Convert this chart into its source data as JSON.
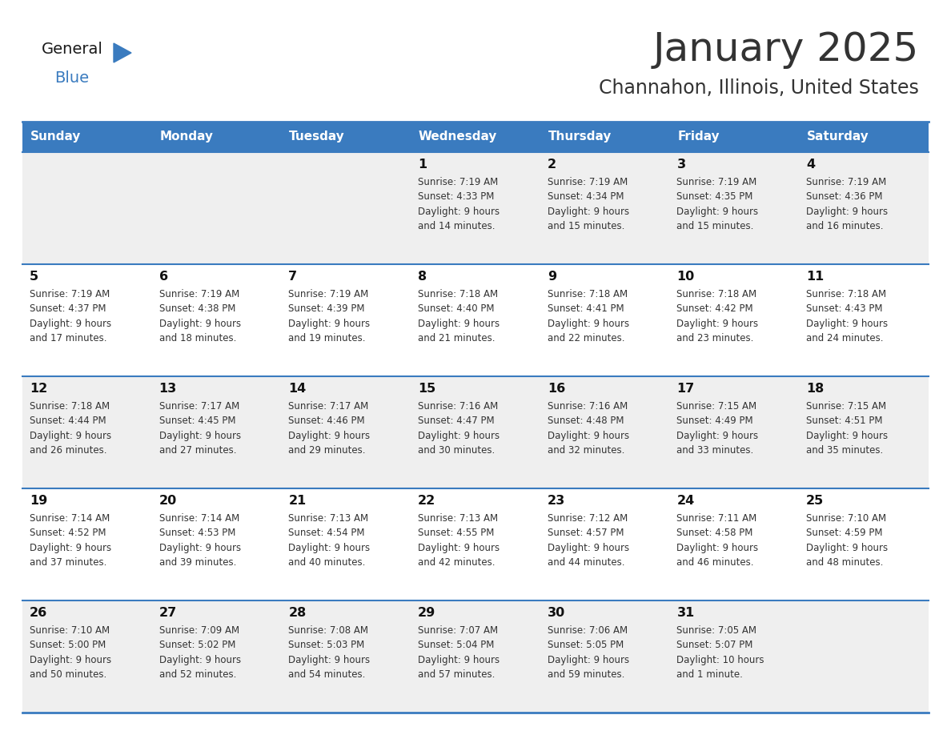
{
  "title": "January 2025",
  "subtitle": "Channahon, Illinois, United States",
  "header_bg_color": "#3a7bbf",
  "header_text_color": "#ffffff",
  "day_names": [
    "Sunday",
    "Monday",
    "Tuesday",
    "Wednesday",
    "Thursday",
    "Friday",
    "Saturday"
  ],
  "odd_row_bg": "#efefef",
  "even_row_bg": "#ffffff",
  "cell_border_color": "#3a7bbf",
  "text_color": "#333333",
  "day_num_color": "#111111",
  "logo_black_color": "#1a1a1a",
  "logo_blue_color": "#3a7bbf",
  "calendar": [
    [
      {
        "day": null,
        "info": null
      },
      {
        "day": null,
        "info": null
      },
      {
        "day": null,
        "info": null
      },
      {
        "day": 1,
        "info": "Sunrise: 7:19 AM\nSunset: 4:33 PM\nDaylight: 9 hours\nand 14 minutes."
      },
      {
        "day": 2,
        "info": "Sunrise: 7:19 AM\nSunset: 4:34 PM\nDaylight: 9 hours\nand 15 minutes."
      },
      {
        "day": 3,
        "info": "Sunrise: 7:19 AM\nSunset: 4:35 PM\nDaylight: 9 hours\nand 15 minutes."
      },
      {
        "day": 4,
        "info": "Sunrise: 7:19 AM\nSunset: 4:36 PM\nDaylight: 9 hours\nand 16 minutes."
      }
    ],
    [
      {
        "day": 5,
        "info": "Sunrise: 7:19 AM\nSunset: 4:37 PM\nDaylight: 9 hours\nand 17 minutes."
      },
      {
        "day": 6,
        "info": "Sunrise: 7:19 AM\nSunset: 4:38 PM\nDaylight: 9 hours\nand 18 minutes."
      },
      {
        "day": 7,
        "info": "Sunrise: 7:19 AM\nSunset: 4:39 PM\nDaylight: 9 hours\nand 19 minutes."
      },
      {
        "day": 8,
        "info": "Sunrise: 7:18 AM\nSunset: 4:40 PM\nDaylight: 9 hours\nand 21 minutes."
      },
      {
        "day": 9,
        "info": "Sunrise: 7:18 AM\nSunset: 4:41 PM\nDaylight: 9 hours\nand 22 minutes."
      },
      {
        "day": 10,
        "info": "Sunrise: 7:18 AM\nSunset: 4:42 PM\nDaylight: 9 hours\nand 23 minutes."
      },
      {
        "day": 11,
        "info": "Sunrise: 7:18 AM\nSunset: 4:43 PM\nDaylight: 9 hours\nand 24 minutes."
      }
    ],
    [
      {
        "day": 12,
        "info": "Sunrise: 7:18 AM\nSunset: 4:44 PM\nDaylight: 9 hours\nand 26 minutes."
      },
      {
        "day": 13,
        "info": "Sunrise: 7:17 AM\nSunset: 4:45 PM\nDaylight: 9 hours\nand 27 minutes."
      },
      {
        "day": 14,
        "info": "Sunrise: 7:17 AM\nSunset: 4:46 PM\nDaylight: 9 hours\nand 29 minutes."
      },
      {
        "day": 15,
        "info": "Sunrise: 7:16 AM\nSunset: 4:47 PM\nDaylight: 9 hours\nand 30 minutes."
      },
      {
        "day": 16,
        "info": "Sunrise: 7:16 AM\nSunset: 4:48 PM\nDaylight: 9 hours\nand 32 minutes."
      },
      {
        "day": 17,
        "info": "Sunrise: 7:15 AM\nSunset: 4:49 PM\nDaylight: 9 hours\nand 33 minutes."
      },
      {
        "day": 18,
        "info": "Sunrise: 7:15 AM\nSunset: 4:51 PM\nDaylight: 9 hours\nand 35 minutes."
      }
    ],
    [
      {
        "day": 19,
        "info": "Sunrise: 7:14 AM\nSunset: 4:52 PM\nDaylight: 9 hours\nand 37 minutes."
      },
      {
        "day": 20,
        "info": "Sunrise: 7:14 AM\nSunset: 4:53 PM\nDaylight: 9 hours\nand 39 minutes."
      },
      {
        "day": 21,
        "info": "Sunrise: 7:13 AM\nSunset: 4:54 PM\nDaylight: 9 hours\nand 40 minutes."
      },
      {
        "day": 22,
        "info": "Sunrise: 7:13 AM\nSunset: 4:55 PM\nDaylight: 9 hours\nand 42 minutes."
      },
      {
        "day": 23,
        "info": "Sunrise: 7:12 AM\nSunset: 4:57 PM\nDaylight: 9 hours\nand 44 minutes."
      },
      {
        "day": 24,
        "info": "Sunrise: 7:11 AM\nSunset: 4:58 PM\nDaylight: 9 hours\nand 46 minutes."
      },
      {
        "day": 25,
        "info": "Sunrise: 7:10 AM\nSunset: 4:59 PM\nDaylight: 9 hours\nand 48 minutes."
      }
    ],
    [
      {
        "day": 26,
        "info": "Sunrise: 7:10 AM\nSunset: 5:00 PM\nDaylight: 9 hours\nand 50 minutes."
      },
      {
        "day": 27,
        "info": "Sunrise: 7:09 AM\nSunset: 5:02 PM\nDaylight: 9 hours\nand 52 minutes."
      },
      {
        "day": 28,
        "info": "Sunrise: 7:08 AM\nSunset: 5:03 PM\nDaylight: 9 hours\nand 54 minutes."
      },
      {
        "day": 29,
        "info": "Sunrise: 7:07 AM\nSunset: 5:04 PM\nDaylight: 9 hours\nand 57 minutes."
      },
      {
        "day": 30,
        "info": "Sunrise: 7:06 AM\nSunset: 5:05 PM\nDaylight: 9 hours\nand 59 minutes."
      },
      {
        "day": 31,
        "info": "Sunrise: 7:05 AM\nSunset: 5:07 PM\nDaylight: 10 hours\nand 1 minute."
      },
      {
        "day": null,
        "info": null
      }
    ]
  ]
}
